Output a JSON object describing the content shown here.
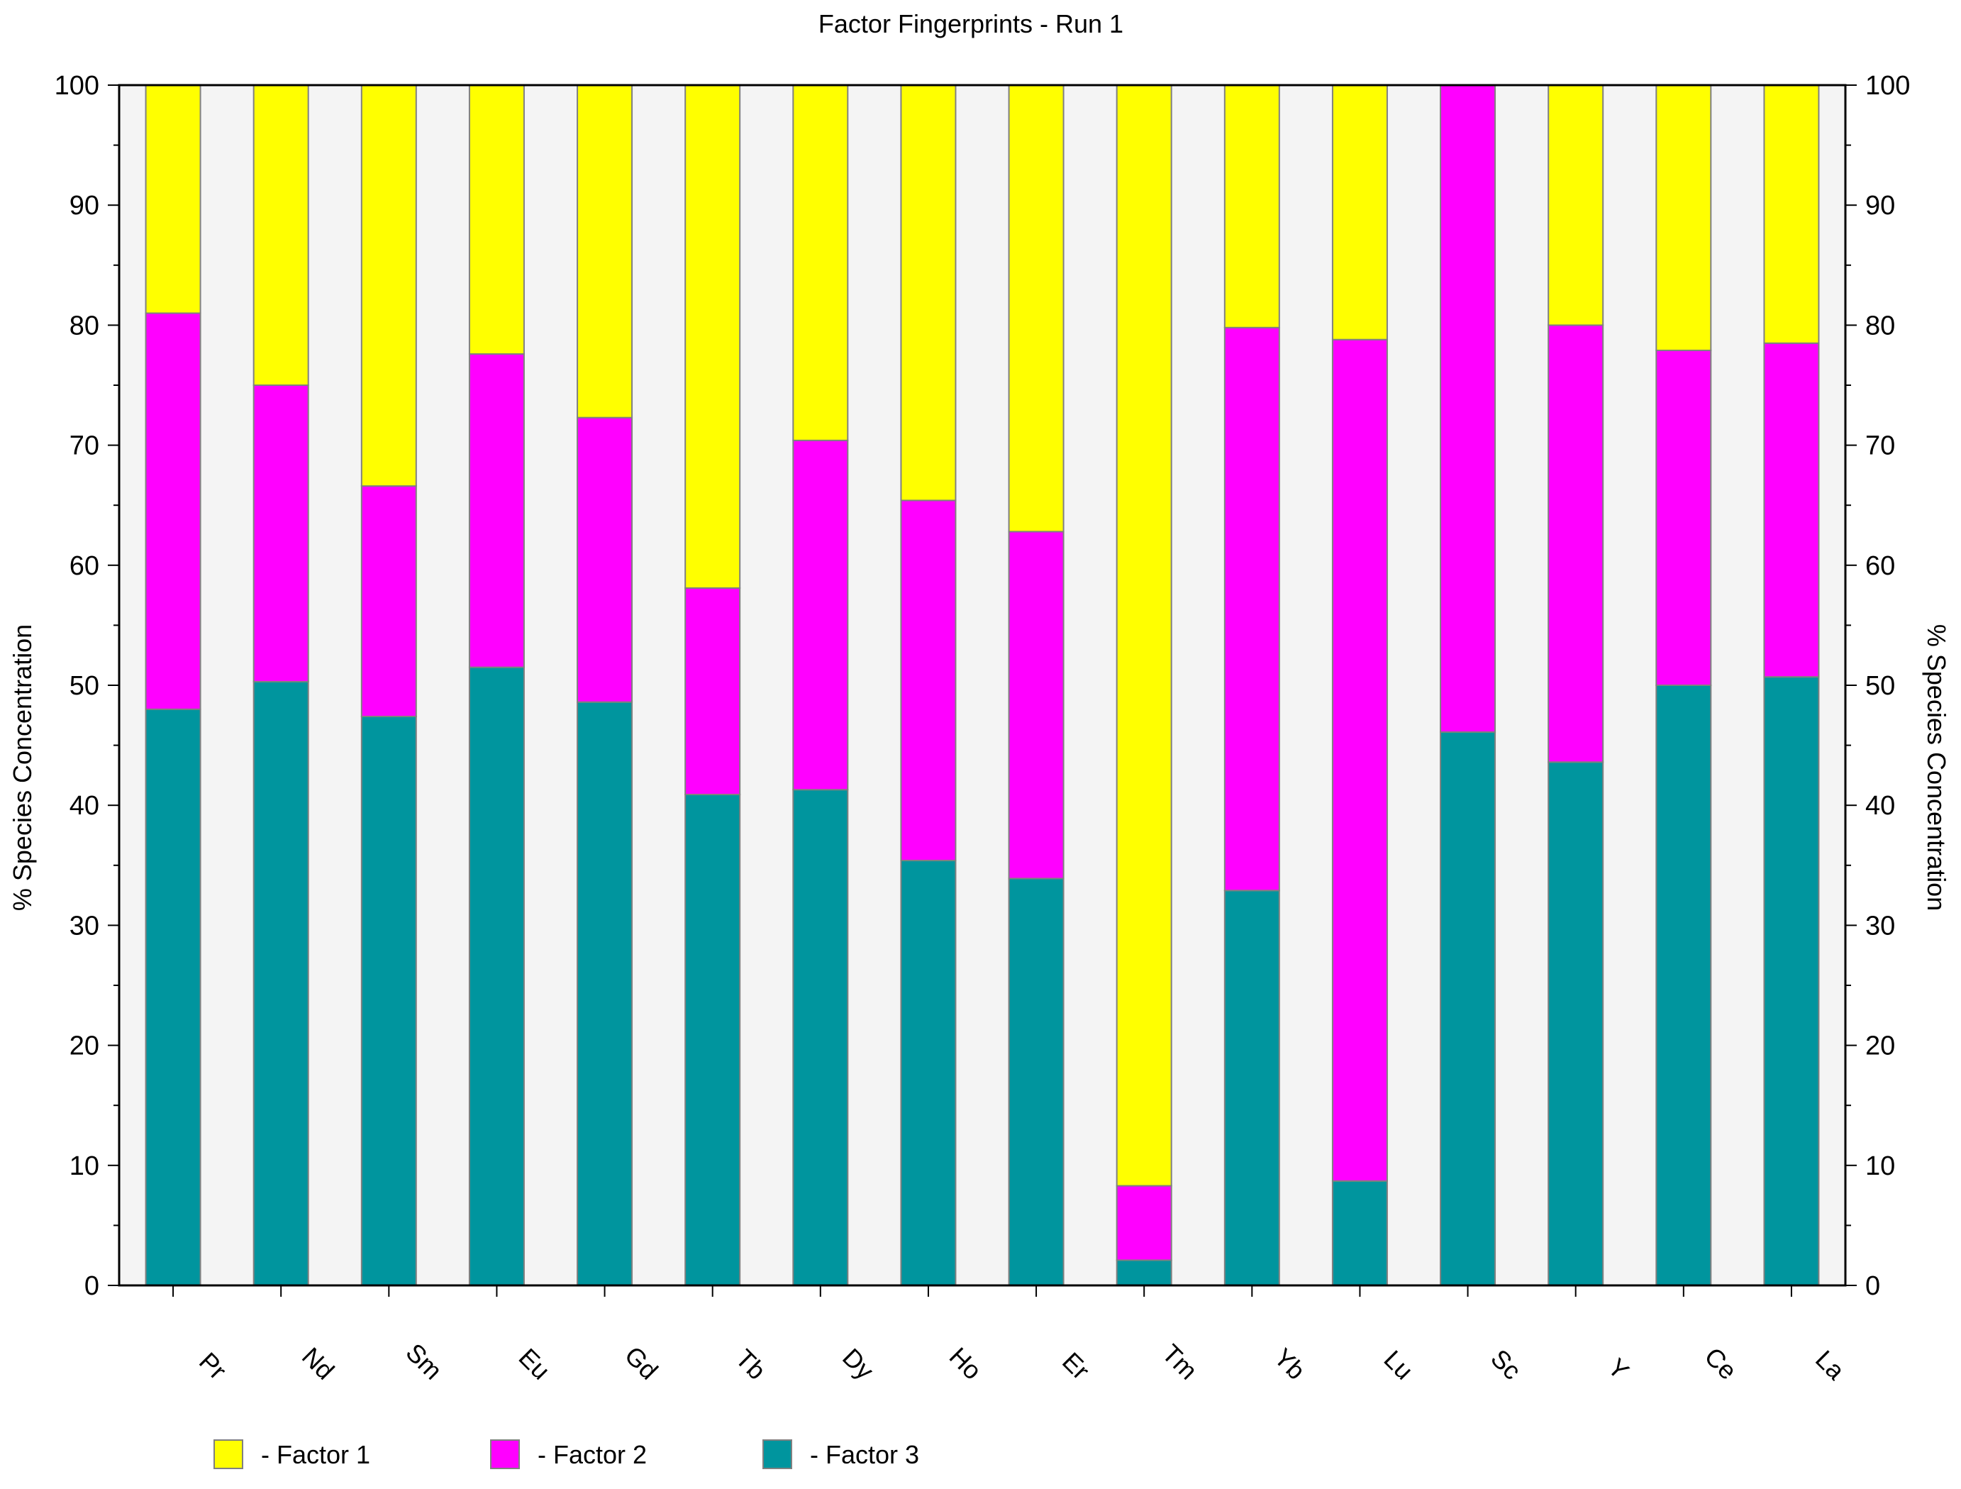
{
  "chart_data": {
    "type": "stacked-bar",
    "title": "Factor Fingerprints - Run 1",
    "ylabel": "% Species Concentration",
    "ylabel_right": "% Species Concentration",
    "xlabel": "",
    "ylim": [
      0,
      100
    ],
    "yticks": [
      0,
      10,
      20,
      30,
      40,
      50,
      60,
      70,
      80,
      90,
      100
    ],
    "grid": false,
    "legend_position": "bottom-left",
    "categories": [
      "Pr",
      "Nd",
      "Sm",
      "Eu",
      "Gd",
      "Tb",
      "Dy",
      "Ho",
      "Er",
      "Tm",
      "Yb",
      "Lu",
      "Sc",
      "Y",
      "Ce",
      "La"
    ],
    "series": [
      {
        "name": "Factor 3",
        "legend_label": "- Factor 3",
        "color": "#00959e",
        "values": [
          48.0,
          50.3,
          47.4,
          51.5,
          48.6,
          40.9,
          41.3,
          35.4,
          33.9,
          2.1,
          32.9,
          8.7,
          46.1,
          43.6,
          50.0,
          50.7
        ]
      },
      {
        "name": "Factor 2",
        "legend_label": "- Factor 2",
        "color": "#ff00ff",
        "values": [
          33.0,
          24.7,
          19.2,
          26.1,
          23.7,
          17.2,
          29.1,
          30.0,
          28.9,
          6.2,
          46.9,
          70.1,
          53.9,
          36.4,
          27.9,
          27.8
        ]
      },
      {
        "name": "Factor 1",
        "legend_label": "- Factor 1",
        "color": "#ffff00",
        "values": [
          19.0,
          25.0,
          33.4,
          22.4,
          27.7,
          41.9,
          29.6,
          34.6,
          37.2,
          91.7,
          20.2,
          21.2,
          0.0,
          20.0,
          22.1,
          21.5
        ]
      }
    ],
    "legend_order": [
      "Factor 1",
      "Factor 2",
      "Factor 3"
    ],
    "plot_background": "#f4f4f4"
  }
}
